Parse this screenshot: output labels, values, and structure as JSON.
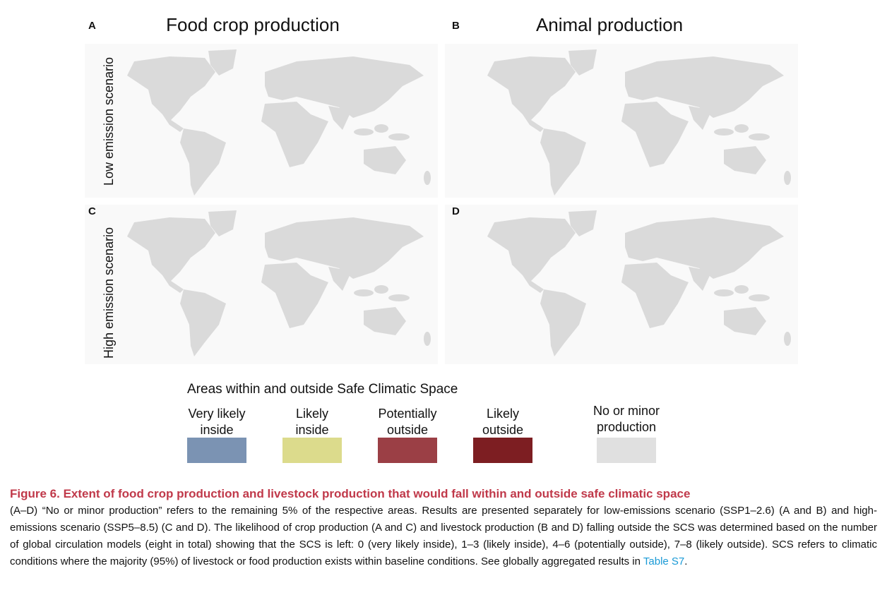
{
  "panels": [
    {
      "label": "A",
      "title": "Food crop production"
    },
    {
      "label": "B",
      "title": "Animal production"
    },
    {
      "label": "C"
    },
    {
      "label": "D"
    }
  ],
  "row_labels": [
    "Low emission scenario",
    "High emission scenario"
  ],
  "legend": {
    "title": "Areas within and outside Safe Climatic Space",
    "items": [
      {
        "lines": [
          "Very likely",
          "inside"
        ]
      },
      {
        "lines": [
          "Likely",
          "inside"
        ]
      },
      {
        "lines": [
          "Potentially",
          "outside"
        ]
      },
      {
        "lines": [
          "Likely",
          "outside"
        ]
      },
      {
        "lines": [
          "No or minor",
          "production"
        ]
      }
    ]
  },
  "caption": {
    "title": "Figure 6.  Extent of food crop production and livestock production that would fall within and outside safe climatic space",
    "body": "(A–D) “No or minor production” refers to the remaining 5% of the respective areas. Results are presented separately for low-emissions scenario (SSP1–2.6) (A and B) and high-emissions scenario (SSP5–8.5) (C and D). The likelihood of crop production (A and C) and livestock production (B and D) falling outside the SCS was determined based on the number of global circulation models (eight in total) showing that the SCS is left: 0 (very likely inside), 1–3 (likely inside), 4–6 (potentially outside), 7–8 (likely outside). SCS refers to climatic conditions where the majority (95%) of livestock or food production exists within baseline conditions. See globally aggregated results in ",
    "link": "Table S7",
    "end": "."
  }
}
